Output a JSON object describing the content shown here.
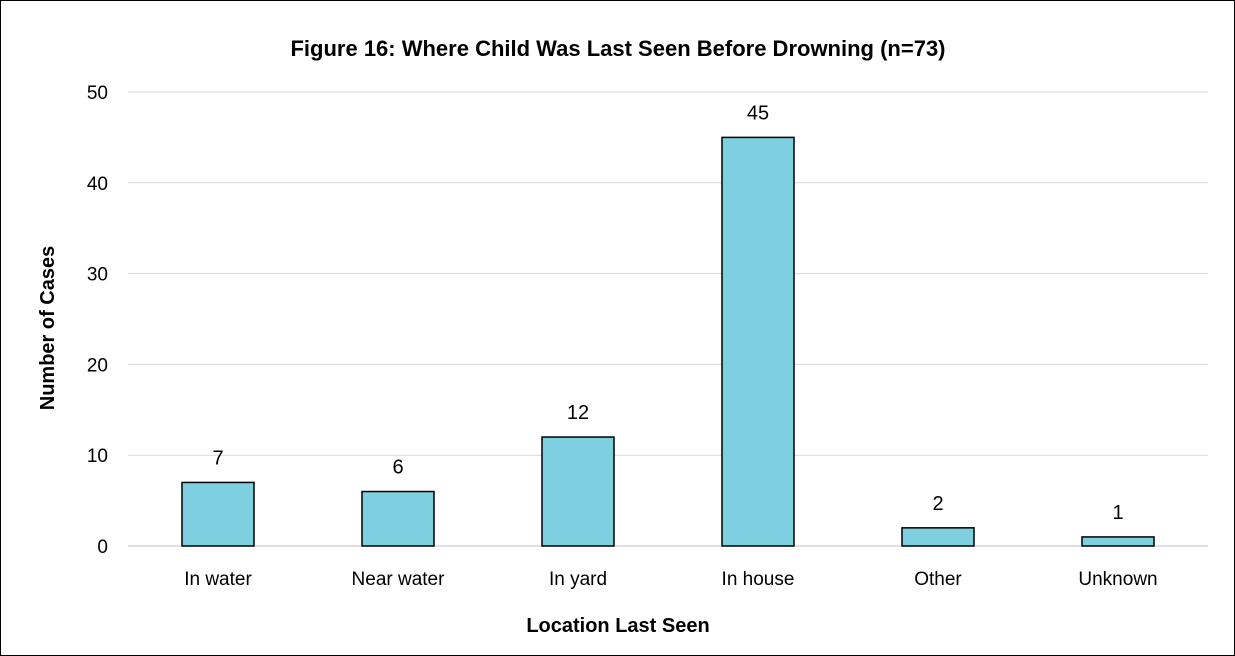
{
  "chart_data": {
    "type": "bar",
    "title": "Figure 16: Where Child Was Last Seen Before Drowning (n=73)",
    "xlabel": "Location Last Seen",
    "ylabel": "Number of Cases",
    "categories": [
      "In water",
      "Near water",
      "In yard",
      "In house",
      "Other",
      "Unknown"
    ],
    "values": [
      7,
      6,
      12,
      45,
      2,
      1
    ],
    "data_labels": [
      "7",
      "6",
      "12",
      "45",
      "2",
      "1"
    ],
    "yticks": [
      0,
      10,
      20,
      30,
      40,
      50
    ],
    "ytick_labels": [
      "0",
      "10",
      "20",
      "30",
      "40",
      "50"
    ],
    "ylim": [
      0,
      50
    ],
    "grid": true,
    "legend": "none",
    "colors": {
      "bar_fill": "#7ecfe0",
      "bar_stroke": "#000000",
      "grid": "#d9d9d9"
    }
  }
}
